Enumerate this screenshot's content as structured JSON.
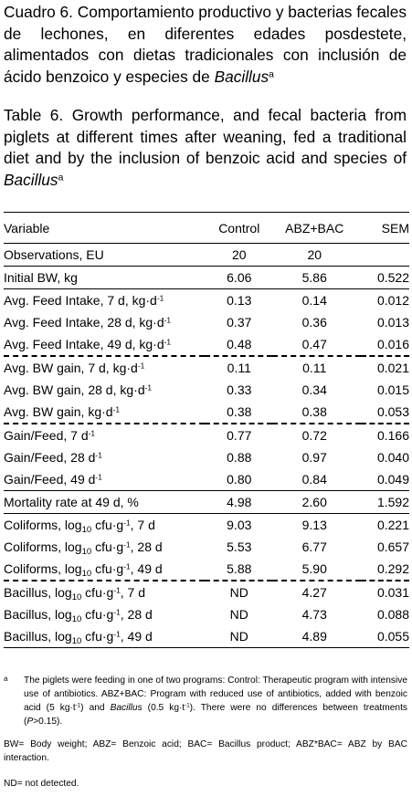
{
  "title_es": {
    "text": "Cuadro 6. Comportamiento productivo y bacterias fecales de lechones, en diferentes edades posdestete, alimentados con dietas tradicionales con inclusión de ácido benzoico y especies de",
    "italic": "Bacillus",
    "sup": "a"
  },
  "title_en": {
    "text": "Table 6. Growth performance, and fecal bacteria from piglets at different times after weaning, fed a traditional diet and by the inclusion of benzoic acid and species of",
    "italic": "Bacillus",
    "sup": "a"
  },
  "table": {
    "headers": [
      "Variable",
      "Control",
      "ABZ+BAC",
      "SEM"
    ],
    "rows": [
      {
        "label": "Observations,  EU",
        "control": "20",
        "abz": "20",
        "sem": ""
      },
      {
        "label": "Initial  BW,  kg",
        "control": "6.06",
        "abz": "5.86",
        "sem": "0.522"
      },
      {
        "pre": "Avg.  Feed  Intake,  7  d,  kg·d",
        "sup": "-1",
        "control": "0.13",
        "abz": "0.14",
        "sem": "0.012"
      },
      {
        "pre": "Avg.  Feed  Intake,  28  d,  kg·d",
        "sup": "-1",
        "control": "0.37",
        "abz": "0.36",
        "sem": "0.013"
      },
      {
        "pre": "Avg.  Feed  Intake,  49  d,  kg·d",
        "sup": "-1",
        "control": "0.48",
        "abz": "0.47",
        "sem": "0.016"
      },
      {
        "pre": "Avg.  BW  gain,  7  d,  kg·d",
        "sup": "-1",
        "control": "0.11",
        "abz": "0.11",
        "sem": "0.021"
      },
      {
        "pre": "Avg.  BW  gain,  28  d,  kg·d",
        "sup": "-1",
        "control": "0.33",
        "abz": "0.34",
        "sem": "0.015"
      },
      {
        "pre": "Avg.  BW  gain,  kg·d",
        "sup": "-1",
        "control": "0.38",
        "abz": "0.38",
        "sem": "0.053"
      },
      {
        "pre": "Gain/Feed,  7  d",
        "sup": "-1",
        "control": "0.77",
        "abz": "0.72",
        "sem": "0.166"
      },
      {
        "pre": "Gain/Feed,  28  d",
        "sup": "-1",
        "control": "0.88",
        "abz": "0.97",
        "sem": "0.040"
      },
      {
        "pre": "Gain/Feed,  49  d",
        "sup": "-1",
        "control": "0.80",
        "abz": "0.84",
        "sem": "0.049"
      },
      {
        "label": "Mortality rate at 49  d,  %",
        "control": "4.98",
        "abz": "2.60",
        "sem": "1.592"
      },
      {
        "pre": "Coliforms,  log",
        "sub": "10",
        "mid": "  cfu·g",
        "sup": "-1",
        "post": ",  7  d",
        "control": "9.03",
        "abz": "9.13",
        "sem": "0.221"
      },
      {
        "pre": "Coliforms,  log",
        "sub": "10",
        "mid": "  cfu·g",
        "sup": "-1",
        "post": ",  28  d",
        "control": "5.53",
        "abz": "6.77",
        "sem": "0.657"
      },
      {
        "pre": "Coliforms,  log",
        "sub": "10",
        "mid": "  cfu·g",
        "sup": "-1",
        "post": ",  49  d",
        "control": "5.88",
        "abz": "5.90",
        "sem": "0.292"
      },
      {
        "pre": "Bacillus,  log",
        "sub": "10",
        "mid": "  cfu·g",
        "sup": "-1",
        "post": ",  7  d",
        "control": "ND",
        "abz": "4.27",
        "sem": "0.031"
      },
      {
        "pre": "Bacillus,  log",
        "sub": "10",
        "mid": "  cfu·g",
        "sup": "-1",
        "post": ",  28  d",
        "control": "ND",
        "abz": "4.73",
        "sem": "0.088"
      },
      {
        "pre": "Bacillus,  log",
        "sub": "10",
        "mid": "  cfu·g",
        "sup": "-1",
        "post": ",  49  d",
        "control": "ND",
        "abz": "4.89",
        "sem": "0.055"
      }
    ]
  },
  "footnotes": {
    "a": {
      "mark": "a",
      "t1": "The piglets were feeding in one of two programs: Control: Therapeutic program with intensive use of antibiotics. ABZ+BAC: Program with reduced use of antibiotics, added with benzoic acid (5 kg·t",
      "sup1": "-1",
      "t2": ") and ",
      "bac": "Bacillus",
      "t3": " (0.5 kg·t",
      "sup2": "-1",
      "t4": "). There were no differences between treatments (",
      "p": "P",
      "t5": ">0.15)."
    },
    "abbrev": "BW= Body weight; ABZ= Benzoic acid; BAC= Bacillus product; ABZ*BAC= ABZ by BAC interaction.",
    "nd": "ND= not detected."
  }
}
